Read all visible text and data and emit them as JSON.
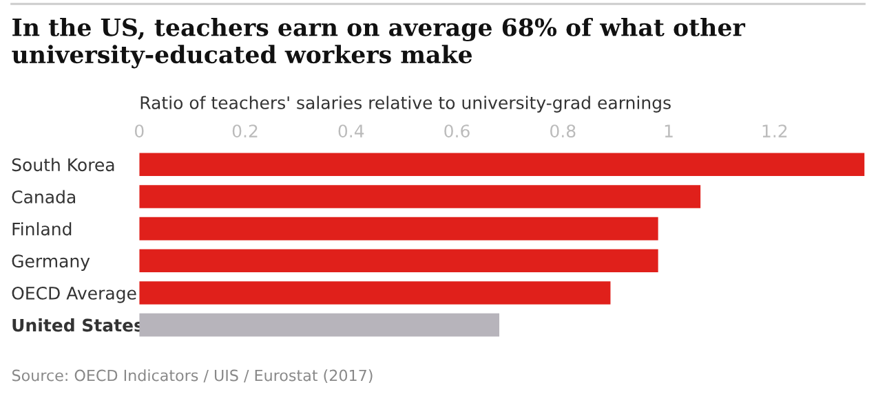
{
  "chart_data": {
    "type": "bar",
    "orientation": "horizontal",
    "title": "In the US, teachers earn on average 68% of what other university-educated workers make",
    "xlabel": "Ratio of teachers' salaries relative to university-grad earnings",
    "categories": [
      "South Korea",
      "Canada",
      "Finland",
      "Germany",
      "OECD Average",
      "United States"
    ],
    "values": [
      1.37,
      1.06,
      0.98,
      0.98,
      0.89,
      0.68
    ],
    "colors": [
      "#e0201b",
      "#e0201b",
      "#e0201b",
      "#e0201b",
      "#e0201b",
      "#b7b4bb"
    ],
    "xlim": [
      0,
      1.37
    ],
    "xticks": [
      0,
      0.2,
      0.4,
      0.6,
      0.8,
      1,
      1.2
    ],
    "grid": false,
    "legend": false,
    "annotations": [
      "Source: OECD Indicators / UIS / Eurostat (2017)"
    ]
  }
}
